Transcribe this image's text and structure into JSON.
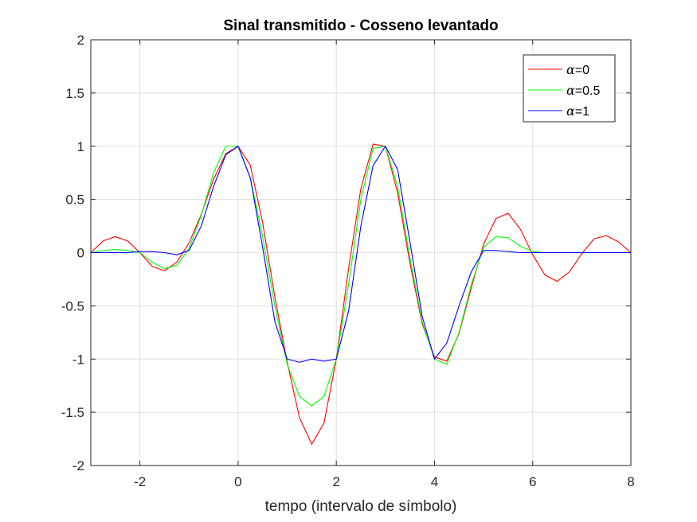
{
  "chart_data": {
    "type": "line",
    "title": "Sinal transmitido - Cosseno levantado",
    "xlabel": "tempo (intervalo de símbolo)",
    "ylabel": "",
    "xlim": [
      -3,
      8
    ],
    "ylim": [
      -2,
      2
    ],
    "xticks": [
      -2,
      0,
      2,
      4,
      6,
      8
    ],
    "xtick_labels": [
      "-2",
      "0",
      "2",
      "4",
      "6",
      "8"
    ],
    "yticks": [
      -2,
      -1.5,
      -1,
      -0.5,
      0,
      0.5,
      1,
      1.5,
      2
    ],
    "ytick_labels": [
      "-2",
      "-1.5",
      "-1",
      "-0.5",
      "0",
      "0.5",
      "1",
      "1.5",
      "2"
    ],
    "grid": true,
    "legend_position": "top-right",
    "series": [
      {
        "name": "=0",
        "legend_symbol": "α",
        "color": "#ff0000",
        "x": [
          -3,
          -2.75,
          -2.5,
          -2.25,
          -2,
          -1.75,
          -1.5,
          -1.25,
          -1,
          -0.75,
          -0.5,
          -0.25,
          0,
          0.25,
          0.5,
          0.75,
          1,
          1.25,
          1.5,
          1.75,
          2,
          2.25,
          2.5,
          2.75,
          3,
          3.25,
          3.5,
          3.75,
          4,
          4.25,
          4.5,
          4.75,
          5,
          5.25,
          5.5,
          5.75,
          6,
          6.25,
          6.5,
          6.75,
          7,
          7.25,
          7.5,
          7.75,
          8
        ],
        "y": [
          0,
          0.11,
          0.15,
          0.11,
          0,
          -0.13,
          -0.17,
          -0.09,
          0.09,
          0.36,
          0.69,
          0.93,
          1.0,
          0.82,
          0.28,
          -0.42,
          -1.03,
          -1.55,
          -1.8,
          -1.6,
          -1.0,
          -0.15,
          0.6,
          1.02,
          1.0,
          0.56,
          -0.1,
          -0.67,
          -0.98,
          -1.02,
          -0.76,
          -0.33,
          0.08,
          0.32,
          0.37,
          0.22,
          -0.02,
          -0.21,
          -0.27,
          -0.18,
          -0.01,
          0.13,
          0.16,
          0.1,
          0
        ]
      },
      {
        "name": "=0.5",
        "legend_symbol": "α",
        "color": "#00ff00",
        "x": [
          -3,
          -2.75,
          -2.5,
          -2.25,
          -2,
          -1.75,
          -1.5,
          -1.25,
          -1,
          -0.75,
          -0.5,
          -0.25,
          0,
          0.25,
          0.5,
          0.75,
          1,
          1.25,
          1.5,
          1.75,
          2,
          2.25,
          2.5,
          2.75,
          3,
          3.25,
          3.5,
          3.75,
          4,
          4.25,
          4.5,
          4.75,
          5,
          5.25,
          5.5,
          5.75,
          6,
          6.25,
          6.5,
          6.75,
          7,
          7.25,
          7.5,
          7.75,
          8
        ],
        "y": [
          0,
          0.02,
          0.03,
          0.02,
          0,
          -0.09,
          -0.15,
          -0.12,
          0.04,
          0.35,
          0.75,
          1.0,
          1.0,
          0.7,
          0.15,
          -0.5,
          -1.05,
          -1.35,
          -1.44,
          -1.35,
          -1.0,
          -0.3,
          0.5,
          0.98,
          1.0,
          0.62,
          -0.05,
          -0.65,
          -1.0,
          -1.05,
          -0.75,
          -0.3,
          0.05,
          0.15,
          0.14,
          0.06,
          0.01,
          0,
          0,
          0,
          0,
          0,
          0,
          0,
          0
        ]
      },
      {
        "name": "=1",
        "legend_symbol": "α",
        "color": "#0000ff",
        "x": [
          -3,
          -2.75,
          -2.5,
          -2.25,
          -2,
          -1.75,
          -1.5,
          -1.25,
          -1,
          -0.75,
          -0.5,
          -0.25,
          0,
          0.25,
          0.5,
          0.75,
          1,
          1.25,
          1.5,
          1.75,
          2,
          2.25,
          2.5,
          2.75,
          3,
          3.25,
          3.5,
          3.75,
          4,
          4.25,
          4.5,
          4.75,
          5,
          5.25,
          5.5,
          5.75,
          6,
          6.25,
          6.5,
          6.75,
          7,
          7.25,
          7.5,
          7.75,
          8
        ],
        "y": [
          0,
          0,
          0,
          0,
          0.01,
          0.01,
          0,
          -0.02,
          0.02,
          0.25,
          0.62,
          0.92,
          1.0,
          0.7,
          0.05,
          -0.65,
          -1.0,
          -1.03,
          -1.0,
          -1.02,
          -1.0,
          -0.55,
          0.25,
          0.82,
          1.0,
          0.78,
          0.1,
          -0.6,
          -1.0,
          -0.85,
          -0.5,
          -0.18,
          0.02,
          0.02,
          0.01,
          0,
          0,
          0,
          0,
          0,
          0,
          0,
          0,
          0,
          0
        ]
      }
    ]
  }
}
